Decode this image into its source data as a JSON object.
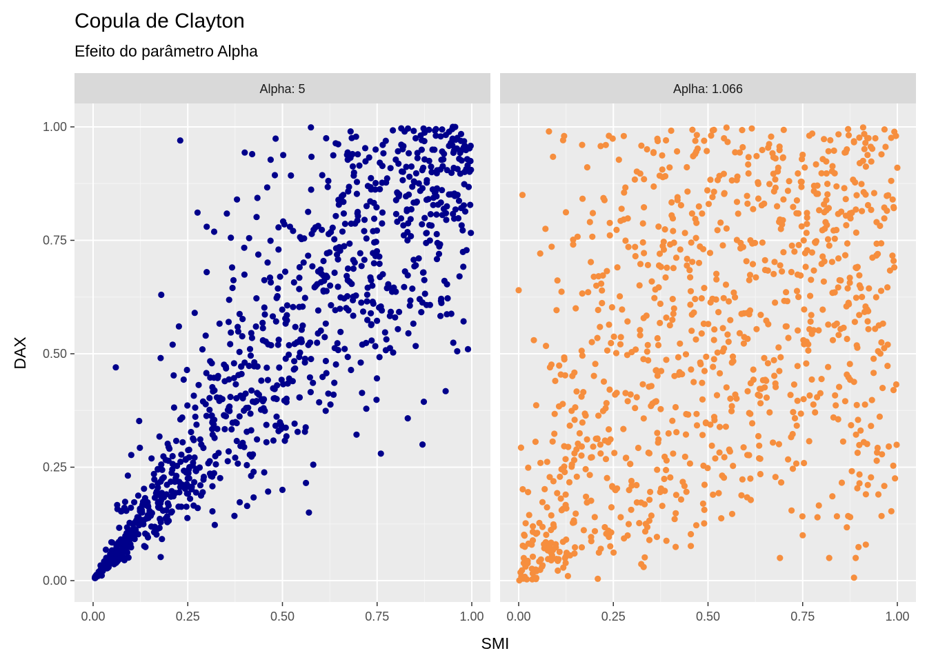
{
  "chart_data": {
    "type": "scatter",
    "title": "Copula de Clayton",
    "subtitle": "Efeito do parâmetro Alpha",
    "xlabel": "SMI",
    "ylabel": "DAX",
    "xlim": [
      0,
      1
    ],
    "ylim": [
      0,
      1
    ],
    "x_ticks": [
      "0.00",
      "0.25",
      "0.50",
      "0.75",
      "1.00"
    ],
    "y_ticks": [
      "0.00",
      "0.25",
      "0.50",
      "0.75",
      "1.00"
    ],
    "grid": true,
    "n_points_per_panel": 1000,
    "panels": [
      {
        "strip_label": "Alpha: 5",
        "alpha": 5,
        "color": "#00008B",
        "points_sample": [
          [
            0.23,
            0.97
          ],
          [
            0.06,
            0.47
          ],
          [
            0.18,
            0.63
          ],
          [
            0.3,
            0.78
          ],
          [
            0.57,
            0.15
          ],
          [
            0.5,
            0.2
          ],
          [
            0.87,
            0.3
          ],
          [
            0.76,
            0.28
          ],
          [
            0.99,
            0.51
          ],
          [
            0.38,
            0.84
          ],
          [
            0.42,
            0.94
          ],
          [
            0.21,
            0.52
          ],
          [
            0.3,
            0.68
          ],
          [
            0.68,
            0.99
          ],
          [
            0.95,
            1.0
          ]
        ]
      },
      {
        "strip_label": "Aplha: 1.066",
        "alpha": 1.066,
        "color": "#F68E3E",
        "points_sample": [
          [
            0.08,
            0.99
          ],
          [
            0.12,
            0.98
          ],
          [
            0.01,
            0.85
          ],
          [
            0.23,
            0.96
          ],
          [
            0.0,
            0.64
          ],
          [
            0.04,
            0.53
          ],
          [
            0.82,
            0.05
          ],
          [
            0.69,
            0.05
          ],
          [
            0.75,
            0.1
          ],
          [
            0.89,
            0.05
          ],
          [
            0.13,
            0.01
          ],
          [
            0.33,
            0.03
          ],
          [
            0.99,
            0.42
          ],
          [
            0.95,
            0.19
          ],
          [
            1.0,
            0.91
          ]
        ]
      }
    ]
  }
}
